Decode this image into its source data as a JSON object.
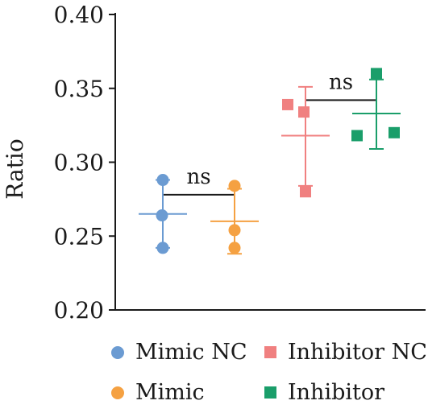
{
  "chart_data": {
    "type": "scatter",
    "ylabel": "Ratio",
    "ylim": [
      0.2,
      0.4
    ],
    "yticks": [
      "0.20",
      "0.25",
      "0.30",
      "0.35",
      "0.40"
    ],
    "ytick_values": [
      0.2,
      0.25,
      0.3,
      0.35,
      0.4
    ],
    "series": [
      {
        "name": "Mimic NC",
        "color": "#6b9bd2",
        "marker": "circle",
        "points": [
          0.288,
          0.264,
          0.242
        ],
        "mean": 0.265,
        "sd_low": 0.242,
        "sd_high": 0.288
      },
      {
        "name": "Mimic",
        "color": "#f5a142",
        "marker": "circle",
        "points": [
          0.284,
          0.254,
          0.242
        ],
        "mean": 0.26,
        "sd_low": 0.238,
        "sd_high": 0.282
      },
      {
        "name": "Inhibitor NC",
        "color": "#f08080",
        "marker": "square",
        "points": [
          0.339,
          0.334,
          0.28
        ],
        "mean": 0.318,
        "sd_low": 0.284,
        "sd_high": 0.351
      },
      {
        "name": "Inhibitor",
        "color": "#1a9e6a",
        "marker": "square",
        "points": [
          0.36,
          0.318,
          0.32
        ],
        "mean": 0.333,
        "sd_low": 0.309,
        "sd_high": 0.356
      }
    ],
    "comparisons": [
      {
        "groups": [
          0,
          1
        ],
        "label": "ns",
        "y": 0.278
      },
      {
        "groups": [
          2,
          3
        ],
        "label": "ns",
        "y": 0.342
      }
    ],
    "legend_position": "bottom"
  },
  "legend": {
    "item_1": "Mimic NC",
    "item_2": "Inhibitor NC",
    "item_3": "Mimic",
    "item_4": "Inhibitor"
  }
}
